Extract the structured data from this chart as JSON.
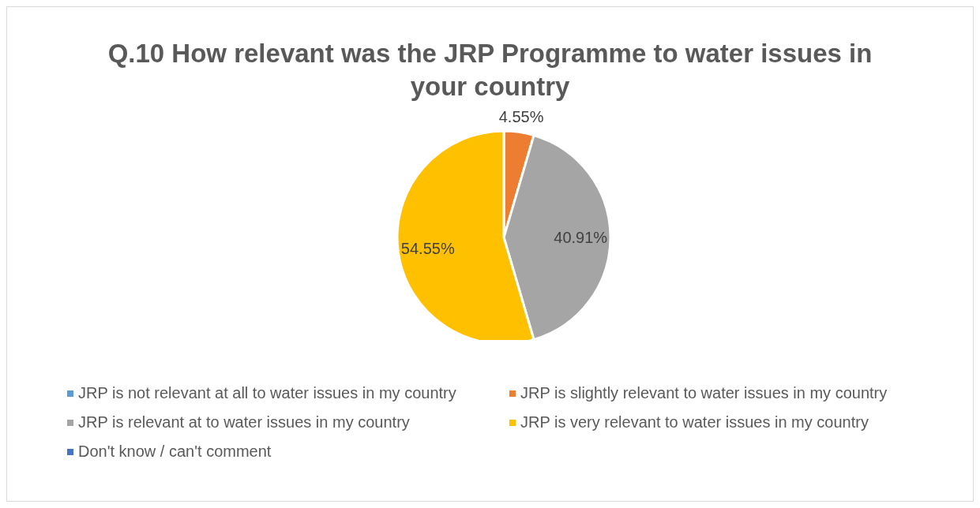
{
  "chart_data": {
    "type": "pie",
    "title": "Q.10 How relevant was the JRP Programme to water issues in your country",
    "categories": [
      "JRP is not relevant at all to water issues in my country",
      "JRP is slightly relevant to water issues in my country",
      "JRP is relevant at to water issues in my country",
      "JRP is very relevant to water issues in my country",
      "Don't know / can't comment"
    ],
    "values": [
      0,
      4.55,
      40.91,
      54.55,
      0
    ],
    "colors": [
      "#5b9bd5",
      "#ed7d31",
      "#a5a5a5",
      "#ffc000",
      "#4472c4"
    ],
    "value_labels": [
      null,
      "4.55%",
      "40.91%",
      "54.55%",
      null
    ],
    "legend": "bottom"
  }
}
